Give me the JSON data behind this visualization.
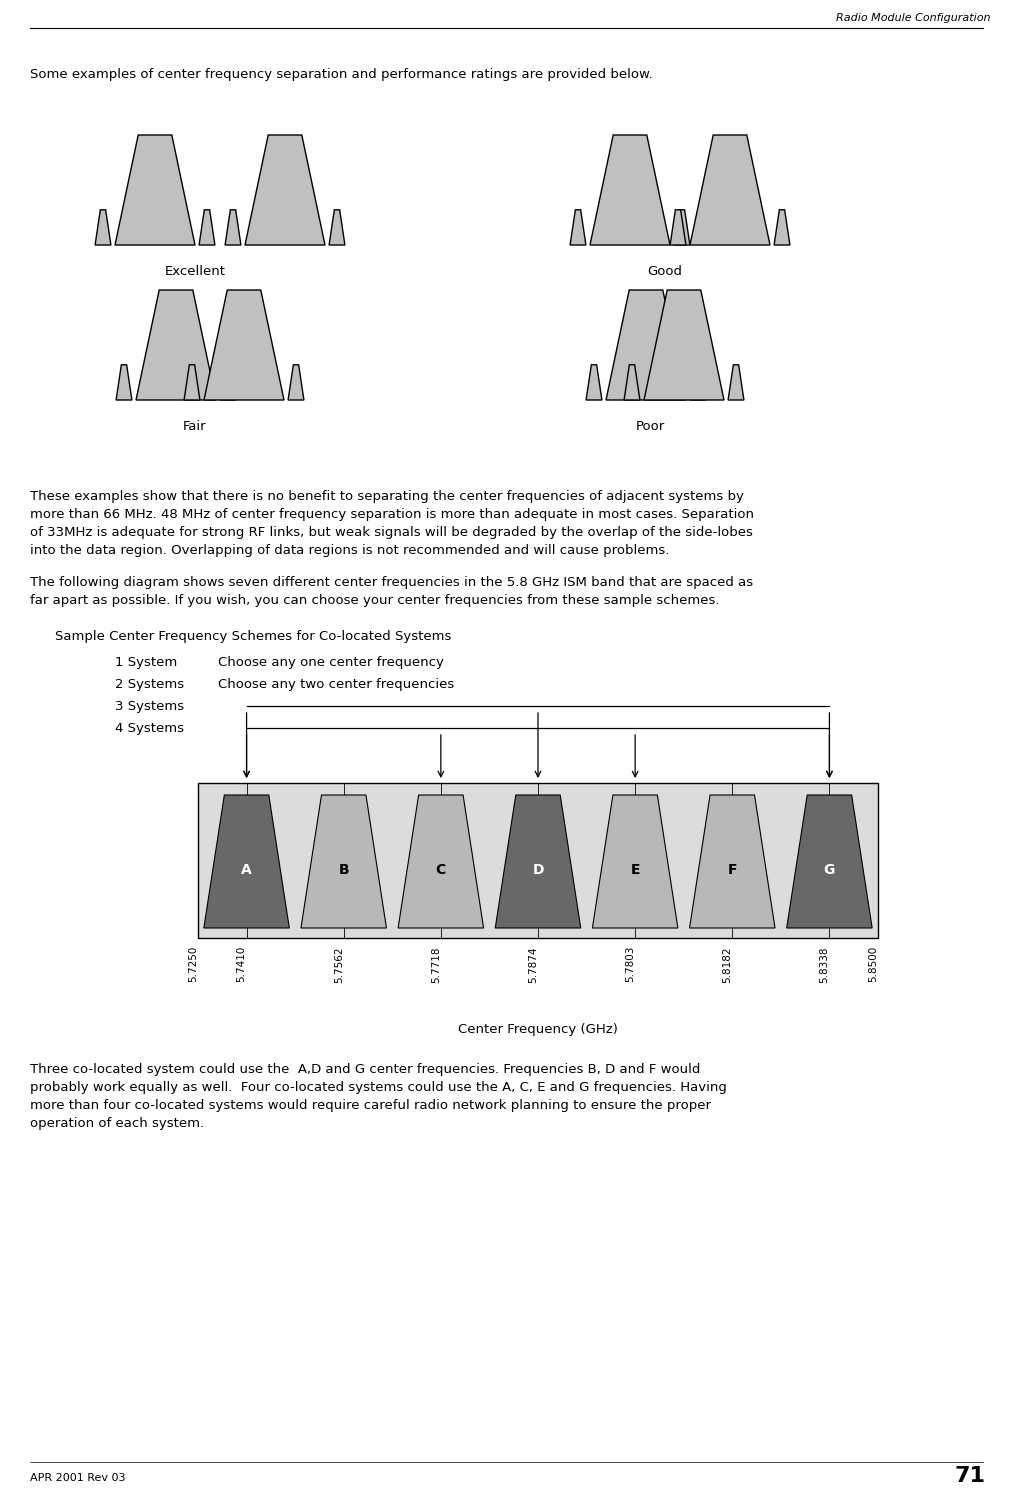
{
  "header_text": "Radio Module Configuration",
  "page_number": "71",
  "footer_text": "APR 2001 Rev 03",
  "intro_text": "Some examples of center frequency separation and performance ratings are provided below.",
  "paragraph1_lines": [
    "These examples show that there is no benefit to separating the center frequencies of adjacent systems by",
    "more than 66 MHz. 48 MHz of center frequency separation is more than adequate in most cases. Separation",
    "of 33MHz is adequate for strong RF links, but weak signals will be degraded by the overlap of the side-lobes",
    "into the data region. Overlapping of data regions is not recommended and will cause problems."
  ],
  "paragraph2_lines": [
    "The following diagram shows seven different center frequencies in the 5.8 GHz ISM band that are spaced as",
    "far apart as possible. If you wish, you can choose your center frequencies from these sample schemes."
  ],
  "diagram_title": "Sample Center Frequency Schemes for Co-located Systems",
  "sys1_label": "1 System",
  "sys1_desc": "Choose any one center frequency",
  "sys2_label": "2 Systems",
  "sys2_desc": "Choose any two center frequencies",
  "sys3_label": "3 Systems",
  "sys4_label": "4 Systems",
  "freq_labels": [
    "A",
    "B",
    "C",
    "D",
    "E",
    "F",
    "G"
  ],
  "freq_tick_values": [
    "5.7250",
    "5.7410",
    "5.7562",
    "5.7718",
    "5.7874",
    "5.7803",
    "5.8182",
    "5.8338",
    "5.8500"
  ],
  "freq_7_values": [
    "5.7250",
    "5.7410",
    "5.7562",
    "5.7718",
    "5.7874",
    "5.7803",
    "5.8182"
  ],
  "xlabel": "Center Frequency (GHz)",
  "paragraph3_lines": [
    "Three co-located system could use the  A,D and G center frequencies. Frequencies B, D and F would",
    "probably work equally as well.  Four co-located systems could use the A, C, E and G frequencies. Having",
    "more than four co-located systems would require careful radio network planning to ensure the proper",
    "operation of each system."
  ],
  "excellent_label": "Excellent",
  "good_label": "Good",
  "fair_label": "Fair",
  "poor_label": "Poor",
  "bg_color": "#ffffff",
  "shape_fc": "#c0c0c0",
  "shape_ec": "#000000",
  "dark_fc": "#686868",
  "light_fc": "#b8b8b8",
  "diag_bg": "#dcdcdc"
}
